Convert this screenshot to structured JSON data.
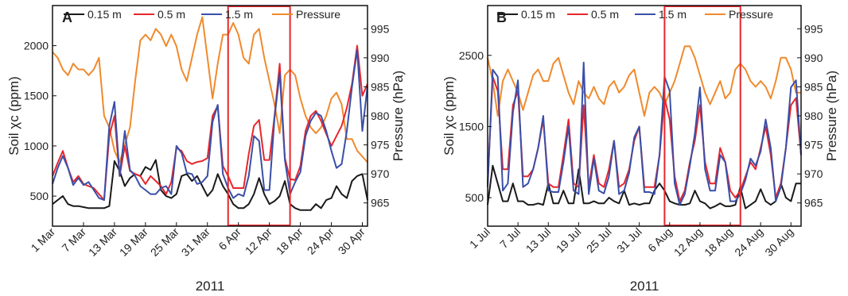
{
  "figure": {
    "colors": {
      "d015": "#1a1a1a",
      "d05": "#e8262b",
      "d15": "#3a4fa8",
      "pressure": "#f08a2c",
      "highlight": "#e8262b"
    }
  },
  "chart_data": [
    {
      "type": "line",
      "panel": "A",
      "xlabel": "2011",
      "ylabel": "Soil χc (ppm)",
      "ylabel_right": "Pressure (hPa)",
      "x": [
        "2011-03-01",
        "2011-03-02",
        "2011-03-03",
        "2011-03-04",
        "2011-03-05",
        "2011-03-06",
        "2011-03-07",
        "2011-03-08",
        "2011-03-09",
        "2011-03-10",
        "2011-03-11",
        "2011-03-12",
        "2011-03-13",
        "2011-03-14",
        "2011-03-15",
        "2011-03-16",
        "2011-03-17",
        "2011-03-18",
        "2011-03-19",
        "2011-03-20",
        "2011-03-21",
        "2011-03-22",
        "2011-03-23",
        "2011-03-24",
        "2011-03-25",
        "2011-03-26",
        "2011-03-27",
        "2011-03-28",
        "2011-03-29",
        "2011-03-30",
        "2011-03-31",
        "2011-04-01",
        "2011-04-02",
        "2011-04-03",
        "2011-04-04",
        "2011-04-05",
        "2011-04-06",
        "2011-04-07",
        "2011-04-08",
        "2011-04-09",
        "2011-04-10",
        "2011-04-11",
        "2011-04-12",
        "2011-04-13",
        "2011-04-14",
        "2011-04-15",
        "2011-04-16",
        "2011-04-17",
        "2011-04-18",
        "2011-04-19",
        "2011-04-20",
        "2011-04-21",
        "2011-04-22",
        "2011-04-23",
        "2011-04-24",
        "2011-04-25",
        "2011-04-26",
        "2011-04-27",
        "2011-04-28",
        "2011-04-29",
        "2011-04-30",
        "2011-05-01"
      ],
      "xticks": [
        "1 Mar",
        "7 Mar",
        "13 Mar",
        "19 Mar",
        "25 Mar",
        "31 Mar",
        "6 Apr",
        "12 Apr",
        "18 Apr",
        "24 Apr",
        "30 Apr"
      ],
      "xtick_dates": [
        "2011-03-01",
        "2011-03-07",
        "2011-03-13",
        "2011-03-19",
        "2011-03-25",
        "2011-03-31",
        "2011-04-06",
        "2011-04-12",
        "2011-04-18",
        "2011-04-24",
        "2011-04-30"
      ],
      "ylim": [
        200,
        2400
      ],
      "yticks": [
        "500",
        "1000",
        "1500",
        "2000"
      ],
      "ytick_values": [
        500,
        1000,
        1500,
        2000
      ],
      "y2lim": [
        961,
        999
      ],
      "y2ticks": [
        "965",
        "970",
        "975",
        "980",
        "985",
        "990",
        "995"
      ],
      "y2tick_values": [
        965,
        970,
        975,
        980,
        985,
        990,
        995
      ],
      "highlight": [
        "2011-04-04",
        "2011-04-16"
      ],
      "legend": [
        "0.15 m",
        "0.5 m",
        "1.5 m",
        "Pressure"
      ],
      "legend_position": "top",
      "grid": false,
      "series": [
        {
          "name": "0.15 m",
          "color_key": "d015",
          "axis": "left",
          "values": [
            420,
            460,
            500,
            420,
            400,
            400,
            390,
            380,
            380,
            380,
            380,
            400,
            850,
            750,
            600,
            680,
            720,
            700,
            790,
            760,
            860,
            560,
            500,
            480,
            520,
            700,
            720,
            650,
            700,
            600,
            500,
            560,
            720,
            600,
            520,
            420,
            380,
            380,
            420,
            520,
            680,
            520,
            420,
            450,
            500,
            650,
            420,
            380,
            360,
            360,
            360,
            420,
            380,
            460,
            480,
            600,
            520,
            480,
            650,
            700,
            720,
            460
          ]
        },
        {
          "name": "0.5 m",
          "color_key": "d05",
          "axis": "left",
          "values": [
            700,
            830,
            950,
            780,
            640,
            700,
            620,
            600,
            580,
            520,
            460,
            1100,
            1300,
            700,
            1000,
            750,
            720,
            700,
            620,
            700,
            650,
            600,
            520,
            640,
            980,
            950,
            850,
            820,
            840,
            850,
            880,
            1300,
            1400,
            800,
            700,
            580,
            580,
            580,
            920,
            1200,
            1260,
            860,
            860,
            1300,
            1820,
            880,
            670,
            660,
            800,
            1150,
            1300,
            1350,
            1250,
            1120,
            1000,
            1100,
            1200,
            1380,
            1620,
            2000,
            1500,
            1620
          ]
        },
        {
          "name": "1.5 m",
          "color_key": "d15",
          "axis": "left",
          "values": [
            620,
            780,
            900,
            780,
            610,
            680,
            610,
            640,
            560,
            480,
            460,
            1200,
            1440,
            700,
            1150,
            760,
            700,
            600,
            560,
            520,
            520,
            580,
            600,
            520,
            1000,
            930,
            730,
            720,
            620,
            640,
            700,
            1240,
            1410,
            720,
            580,
            480,
            520,
            500,
            700,
            1100,
            1050,
            560,
            560,
            1280,
            1730,
            860,
            520,
            640,
            740,
            1100,
            1250,
            1330,
            1300,
            1150,
            950,
            780,
            820,
            1150,
            1590,
            1960,
            1150,
            1600
          ]
        },
        {
          "name": "Pressure",
          "color_key": "pressure",
          "axis": "right",
          "values": [
            991,
            990,
            988,
            987,
            989,
            988,
            988,
            987,
            988,
            990,
            980,
            978,
            974,
            972,
            975,
            978,
            986,
            993,
            994,
            993,
            995,
            994,
            992,
            994,
            992,
            988,
            986,
            990,
            994,
            997,
            990,
            983,
            989,
            994,
            994,
            996,
            994,
            990,
            989,
            994,
            995,
            990,
            986,
            982,
            977,
            987,
            988,
            987,
            983,
            980,
            978,
            977,
            978,
            980,
            983,
            984,
            982,
            976,
            976,
            974,
            973,
            972
          ]
        }
      ]
    },
    {
      "type": "line",
      "panel": "B",
      "xlabel": "2011",
      "ylabel": "Soil χc (ppm)",
      "ylabel_right": "Pressure (hPa)",
      "x": [
        "2011-07-01",
        "2011-07-02",
        "2011-07-03",
        "2011-07-04",
        "2011-07-05",
        "2011-07-06",
        "2011-07-07",
        "2011-07-08",
        "2011-07-09",
        "2011-07-10",
        "2011-07-11",
        "2011-07-12",
        "2011-07-13",
        "2011-07-14",
        "2011-07-15",
        "2011-07-16",
        "2011-07-17",
        "2011-07-18",
        "2011-07-19",
        "2011-07-20",
        "2011-07-21",
        "2011-07-22",
        "2011-07-23",
        "2011-07-24",
        "2011-07-25",
        "2011-07-26",
        "2011-07-27",
        "2011-07-28",
        "2011-07-29",
        "2011-07-30",
        "2011-07-31",
        "2011-08-01",
        "2011-08-02",
        "2011-08-03",
        "2011-08-04",
        "2011-08-05",
        "2011-08-06",
        "2011-08-07",
        "2011-08-08",
        "2011-08-09",
        "2011-08-10",
        "2011-08-11",
        "2011-08-12",
        "2011-08-13",
        "2011-08-14",
        "2011-08-15",
        "2011-08-16",
        "2011-08-17",
        "2011-08-18",
        "2011-08-19",
        "2011-08-20",
        "2011-08-21",
        "2011-08-22",
        "2011-08-23",
        "2011-08-24",
        "2011-08-25",
        "2011-08-26",
        "2011-08-27",
        "2011-08-28",
        "2011-08-29",
        "2011-08-30",
        "2011-08-31",
        "2011-09-01"
      ],
      "xticks": [
        "1 Jul",
        "7 Jul",
        "13 Jul",
        "19 Jul",
        "25 Jul",
        "31 Jul",
        "6 Aug",
        "12 Aug",
        "18 Aug",
        "24 Aug",
        "30 Aug"
      ],
      "xtick_dates": [
        "2011-07-01",
        "2011-07-07",
        "2011-07-13",
        "2011-07-19",
        "2011-07-25",
        "2011-07-31",
        "2011-08-06",
        "2011-08-12",
        "2011-08-18",
        "2011-08-24",
        "2011-08-30"
      ],
      "ylim": [
        100,
        3200
      ],
      "yticks": [
        "500",
        "1500",
        "2500"
      ],
      "ytick_values": [
        500,
        1500,
        2500
      ],
      "y2lim": [
        961,
        999
      ],
      "y2ticks": [
        "965",
        "970",
        "975",
        "980",
        "985",
        "990",
        "995"
      ],
      "y2tick_values": [
        965,
        970,
        975,
        980,
        985,
        990,
        995
      ],
      "highlight": [
        "2011-08-05",
        "2011-08-20"
      ],
      "legend": [
        "0.15 m",
        "0.5 m",
        "1.5 m",
        "Pressure"
      ],
      "legend_position": "top",
      "grid": false,
      "series": [
        {
          "name": "0.15 m",
          "color_key": "d015",
          "axis": "left",
          "values": [
            400,
            950,
            700,
            450,
            450,
            700,
            450,
            450,
            400,
            400,
            420,
            400,
            700,
            420,
            420,
            600,
            420,
            420,
            900,
            420,
            420,
            450,
            420,
            420,
            500,
            450,
            420,
            600,
            400,
            420,
            400,
            420,
            420,
            600,
            700,
            600,
            450,
            420,
            400,
            400,
            420,
            600,
            450,
            420,
            350,
            380,
            420,
            380,
            380,
            400,
            650,
            350,
            400,
            450,
            620,
            450,
            400,
            450,
            700,
            500,
            450,
            700,
            700
          ]
        },
        {
          "name": "0.5 m",
          "color_key": "d05",
          "axis": "left",
          "values": [
            700,
            2200,
            2000,
            900,
            900,
            1800,
            2000,
            800,
            800,
            900,
            1200,
            1600,
            700,
            650,
            650,
            1100,
            1600,
            700,
            650,
            1800,
            650,
            1100,
            700,
            650,
            900,
            1300,
            650,
            700,
            900,
            1300,
            1500,
            650,
            650,
            650,
            1100,
            1900,
            1600,
            800,
            450,
            600,
            1000,
            1300,
            1800,
            1000,
            700,
            700,
            1200,
            1000,
            600,
            500,
            600,
            800,
            1000,
            900,
            1200,
            1500,
            1100,
            500,
            700,
            1200,
            1800,
            1900,
            1100
          ]
        },
        {
          "name": "1.5 m",
          "color_key": "d15",
          "axis": "left",
          "values": [
            650,
            2300,
            2200,
            600,
            700,
            1700,
            2150,
            650,
            700,
            900,
            1200,
            1650,
            600,
            580,
            580,
            1000,
            1500,
            600,
            550,
            2400,
            550,
            1050,
            600,
            560,
            800,
            1300,
            550,
            600,
            850,
            1350,
            1500,
            580,
            580,
            550,
            1100,
            2200,
            2000,
            700,
            400,
            550,
            950,
            1400,
            2050,
            900,
            600,
            600,
            1100,
            1000,
            450,
            450,
            550,
            750,
            1050,
            950,
            1150,
            1600,
            1200,
            450,
            650,
            1200,
            2050,
            2150,
            1100
          ]
        },
        {
          "name": "Pressure",
          "color_key": "pressure",
          "axis": "right",
          "values": [
            990,
            986,
            980,
            986,
            988,
            986,
            984,
            981,
            984,
            987,
            988,
            986,
            986,
            989,
            990,
            987,
            984,
            982,
            986,
            984,
            983,
            985,
            983,
            982,
            985,
            986,
            984,
            985,
            987,
            988,
            984,
            980,
            984,
            985,
            984,
            982,
            984,
            986,
            989,
            992,
            992,
            990,
            987,
            984,
            982,
            984,
            986,
            983,
            984,
            988,
            989,
            988,
            986,
            985,
            986,
            985,
            983,
            986,
            990,
            990,
            988,
            984,
            984
          ]
        }
      ]
    }
  ]
}
